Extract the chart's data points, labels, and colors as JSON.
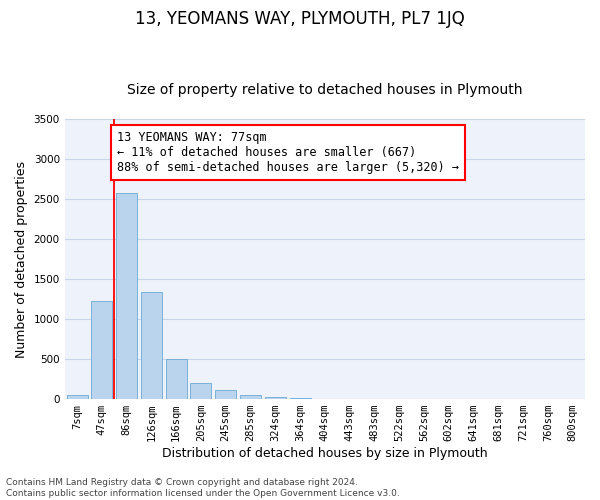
{
  "title": "13, YEOMANS WAY, PLYMOUTH, PL7 1JQ",
  "subtitle": "Size of property relative to detached houses in Plymouth",
  "xlabel": "Distribution of detached houses by size in Plymouth",
  "ylabel": "Number of detached properties",
  "bin_labels": [
    "7sqm",
    "47sqm",
    "86sqm",
    "126sqm",
    "166sqm",
    "205sqm",
    "245sqm",
    "285sqm",
    "324sqm",
    "364sqm",
    "404sqm",
    "443sqm",
    "483sqm",
    "522sqm",
    "562sqm",
    "602sqm",
    "641sqm",
    "681sqm",
    "721sqm",
    "760sqm",
    "800sqm"
  ],
  "bar_values": [
    55,
    1230,
    2570,
    1340,
    500,
    200,
    110,
    50,
    25,
    10,
    5,
    0,
    0,
    0,
    0,
    0,
    0,
    0,
    0,
    0,
    0
  ],
  "bar_color": "#bad4ee",
  "bar_edge_color": "#6aaad4",
  "vline_color": "red",
  "annotation_text": "13 YEOMANS WAY: 77sqm\n← 11% of detached houses are smaller (667)\n88% of semi-detached houses are larger (5,320) →",
  "annotation_box_color": "white",
  "annotation_box_edge_color": "red",
  "ylim": [
    0,
    3500
  ],
  "yticks": [
    0,
    500,
    1000,
    1500,
    2000,
    2500,
    3000,
    3500
  ],
  "footer_text": "Contains HM Land Registry data © Crown copyright and database right 2024.\nContains public sector information licensed under the Open Government Licence v3.0.",
  "background_color": "#ffffff",
  "plot_background_color": "#eef2fa",
  "grid_color": "#c8d4e8",
  "title_fontsize": 12,
  "subtitle_fontsize": 10,
  "axis_label_fontsize": 9,
  "tick_fontsize": 7.5,
  "annotation_fontsize": 8.5,
  "footer_fontsize": 6.5
}
